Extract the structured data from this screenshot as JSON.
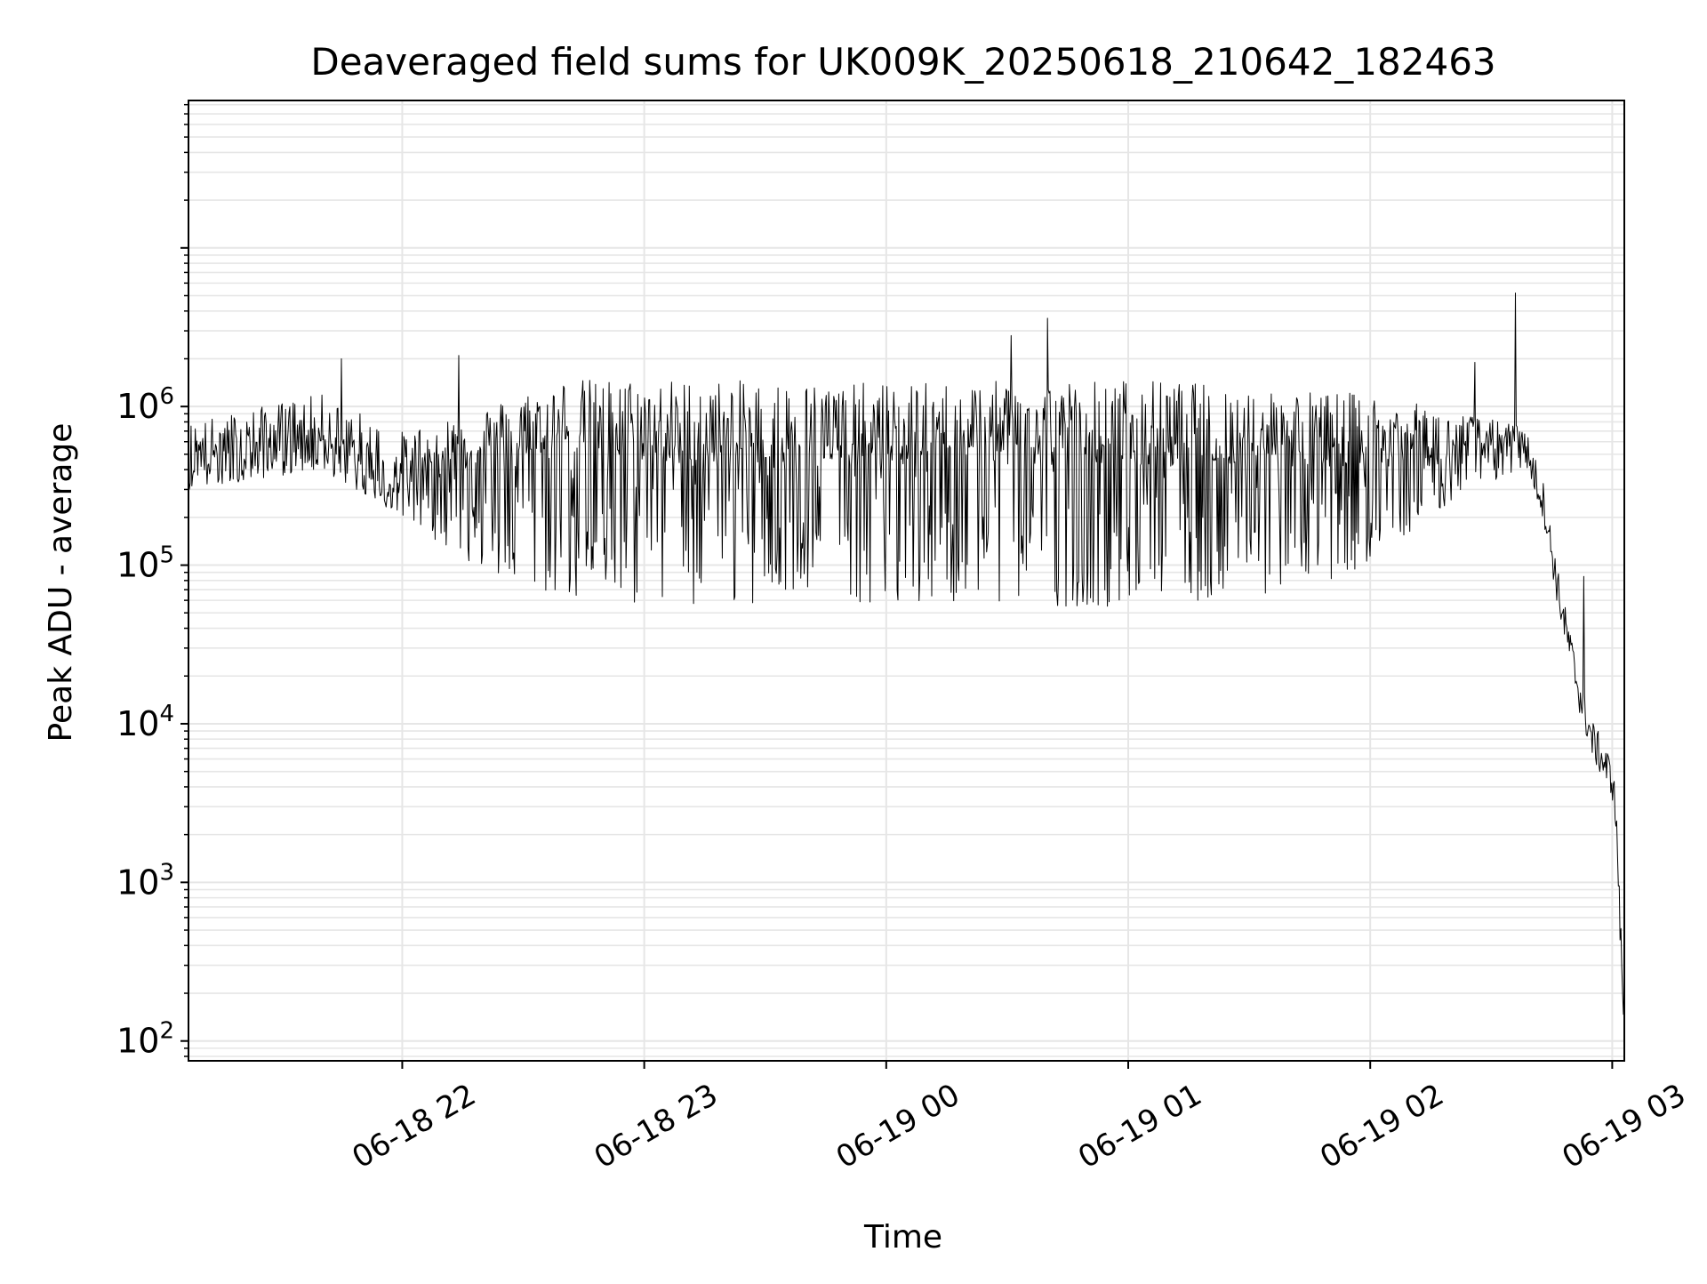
{
  "chart_data": {
    "type": "line",
    "title": "Deaveraged field sums for UK009K_20250618_210642_182463",
    "xlabel": "Time",
    "ylabel": "Peak ADU - average",
    "yscale": "log",
    "ylim": [
      75,
      85000000
    ],
    "xlim": [
      "2025-06-18 21:07",
      "2025-06-19 03:03"
    ],
    "x_ticks": [
      {
        "value": "2025-06-18 22:00",
        "label": "06-18 22"
      },
      {
        "value": "2025-06-18 23:00",
        "label": "06-18 23"
      },
      {
        "value": "2025-06-19 00:00",
        "label": "06-19 00"
      },
      {
        "value": "2025-06-19 01:00",
        "label": "06-19 01"
      },
      {
        "value": "2025-06-19 02:00",
        "label": "06-19 02"
      },
      {
        "value": "2025-06-19 03:00",
        "label": "06-19 03"
      }
    ],
    "y_ticks": [
      {
        "value": 100,
        "base": "10",
        "exp": "2"
      },
      {
        "value": 1000,
        "base": "10",
        "exp": "3"
      },
      {
        "value": 10000,
        "base": "10",
        "exp": "4"
      },
      {
        "value": 100000,
        "base": "10",
        "exp": "5"
      },
      {
        "value": 1000000,
        "base": "10",
        "exp": "6"
      }
    ],
    "grid": true,
    "line_color": "#000000",
    "grid_color": "#e6e6e6",
    "series": [
      {
        "values": [
          {
            "x": "2025-06-18 21:07",
            "y": 450000
          },
          {
            "x": "2025-06-18 21:15",
            "y": 500000
          },
          {
            "x": "2025-06-18 21:25",
            "y": 560000
          },
          {
            "x": "2025-06-18 21:35",
            "y": 700000
          },
          {
            "x": "2025-06-18 21:45",
            "y": 520000
          },
          {
            "x": "2025-06-18 21:55",
            "y": 300000
          },
          {
            "x": "2025-06-18 22:05",
            "y": 400000
          },
          {
            "x": "2025-06-18 22:20",
            "y": 500000
          },
          {
            "x": "2025-06-18 22:40",
            "y": 600000
          },
          {
            "x": "2025-06-18 23:00",
            "y": 500000
          },
          {
            "x": "2025-06-18 23:30",
            "y": 500000
          },
          {
            "x": "2025-06-19 00:00",
            "y": 500000
          },
          {
            "x": "2025-06-19 00:30",
            "y": 500000
          },
          {
            "x": "2025-06-19 01:00",
            "y": 500000
          },
          {
            "x": "2025-06-19 01:30",
            "y": 500000
          },
          {
            "x": "2025-06-19 02:00",
            "y": 500000
          },
          {
            "x": "2025-06-19 02:20",
            "y": 500000
          },
          {
            "x": "2025-06-19 02:30",
            "y": 600000
          },
          {
            "x": "2025-06-19 02:38",
            "y": 600000
          },
          {
            "x": "2025-06-19 02:43",
            "y": 250000
          },
          {
            "x": "2025-06-19 02:47",
            "y": 60000
          },
          {
            "x": "2025-06-19 02:52",
            "y": 15000
          },
          {
            "x": "2025-06-19 02:55",
            "y": 8000
          },
          {
            "x": "2025-06-19 03:00",
            "y": 4500
          },
          {
            "x": "2025-06-19 03:01",
            "y": 2500
          },
          {
            "x": "2025-06-19 03:02",
            "y": 500
          },
          {
            "x": "2025-06-19 03:03",
            "y": 120
          }
        ],
        "spikes": [
          {
            "x": "2025-06-18 21:45",
            "y": 2000000
          },
          {
            "x": "2025-06-18 22:14",
            "y": 2100000
          },
          {
            "x": "2025-06-19 00:31",
            "y": 2800000
          },
          {
            "x": "2025-06-19 00:40",
            "y": 3600000
          },
          {
            "x": "2025-06-19 02:26",
            "y": 1900000
          },
          {
            "x": "2025-06-19 02:36",
            "y": 5200000
          },
          {
            "x": "2025-06-19 02:53",
            "y": 85000
          }
        ],
        "band_top": [
          {
            "x": "2025-06-18 21:07",
            "y": 800000
          },
          {
            "x": "2025-06-18 21:40",
            "y": 1200000
          },
          {
            "x": "2025-06-18 22:00",
            "y": 700000
          },
          {
            "x": "2025-06-18 22:20",
            "y": 1000000
          },
          {
            "x": "2025-06-18 22:40",
            "y": 1500000
          },
          {
            "x": "2025-06-18 23:00",
            "y": 1500000
          },
          {
            "x": "2025-06-19 00:00",
            "y": 1400000
          },
          {
            "x": "2025-06-19 01:00",
            "y": 1500000
          },
          {
            "x": "2025-06-19 02:00",
            "y": 1200000
          },
          {
            "x": "2025-06-19 02:38",
            "y": 750000
          }
        ],
        "band_bottom": [
          {
            "x": "2025-06-18 21:07",
            "y": 300000
          },
          {
            "x": "2025-06-18 21:40",
            "y": 400000
          },
          {
            "x": "2025-06-18 22:00",
            "y": 200000
          },
          {
            "x": "2025-06-18 22:20",
            "y": 90000
          },
          {
            "x": "2025-06-18 22:40",
            "y": 60000
          },
          {
            "x": "2025-06-18 23:00",
            "y": 55000
          },
          {
            "x": "2025-06-19 00:00",
            "y": 55000
          },
          {
            "x": "2025-06-19 01:00",
            "y": 55000
          },
          {
            "x": "2025-06-19 01:50",
            "y": 70000
          },
          {
            "x": "2025-06-19 02:20",
            "y": 250000
          },
          {
            "x": "2025-06-19 02:38",
            "y": 400000
          }
        ]
      }
    ]
  }
}
